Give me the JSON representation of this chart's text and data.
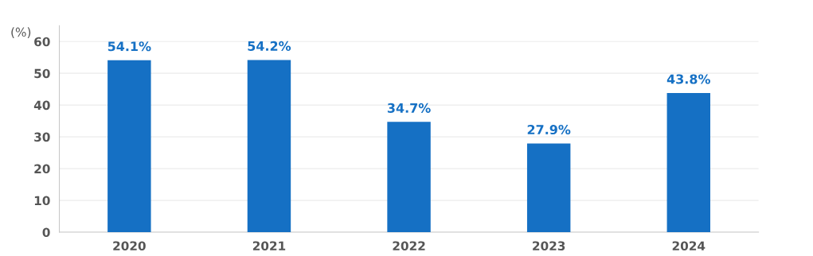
{
  "chart_data": {
    "type": "bar",
    "ylabel": "(%)",
    "categories": [
      "2020",
      "2021",
      "2022",
      "2023",
      "2024"
    ],
    "values": [
      54.1,
      54.2,
      34.7,
      27.9,
      43.8
    ],
    "value_labels": [
      "54.1%",
      "54.2%",
      "34.7%",
      "27.9%",
      "43.8%"
    ],
    "color": "#1570c4",
    "ylim": [
      0,
      65
    ],
    "yticks": [
      0,
      10,
      20,
      30,
      40,
      50,
      60
    ],
    "grid": "y"
  }
}
